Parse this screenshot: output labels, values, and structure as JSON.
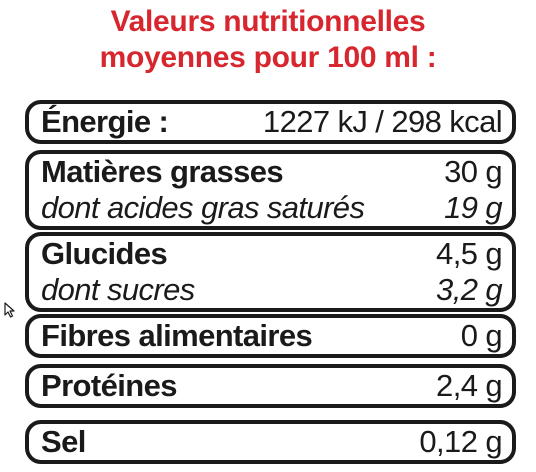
{
  "title": {
    "line1": "Valeurs nutritionnelles",
    "line2": "moyennes pour 100 ml :"
  },
  "table": {
    "energy": {
      "label": "Énergie :",
      "value": "1227 kJ / 298 kcal"
    },
    "fat": {
      "label": "Matières grasses",
      "value": "30 g"
    },
    "saturated": {
      "label": "dont acides gras saturés",
      "value": "19 g"
    },
    "carbs": {
      "label": "Glucides",
      "value": "4,5 g"
    },
    "sugars": {
      "label": "dont sucres",
      "value": "3,2 g"
    },
    "fibre": {
      "label": "Fibres alimentaires",
      "value": "0 g"
    },
    "protein": {
      "label": "Protéines",
      "value": "2,4 g"
    },
    "salt": {
      "label": "Sel",
      "value": "0,12 g"
    }
  },
  "colors": {
    "title": "#d7262e",
    "text": "#1a1a1a",
    "border": "#1a1a1a",
    "background": "#ffffff"
  },
  "icons": {
    "cursor": "mouse-pointer-icon"
  }
}
